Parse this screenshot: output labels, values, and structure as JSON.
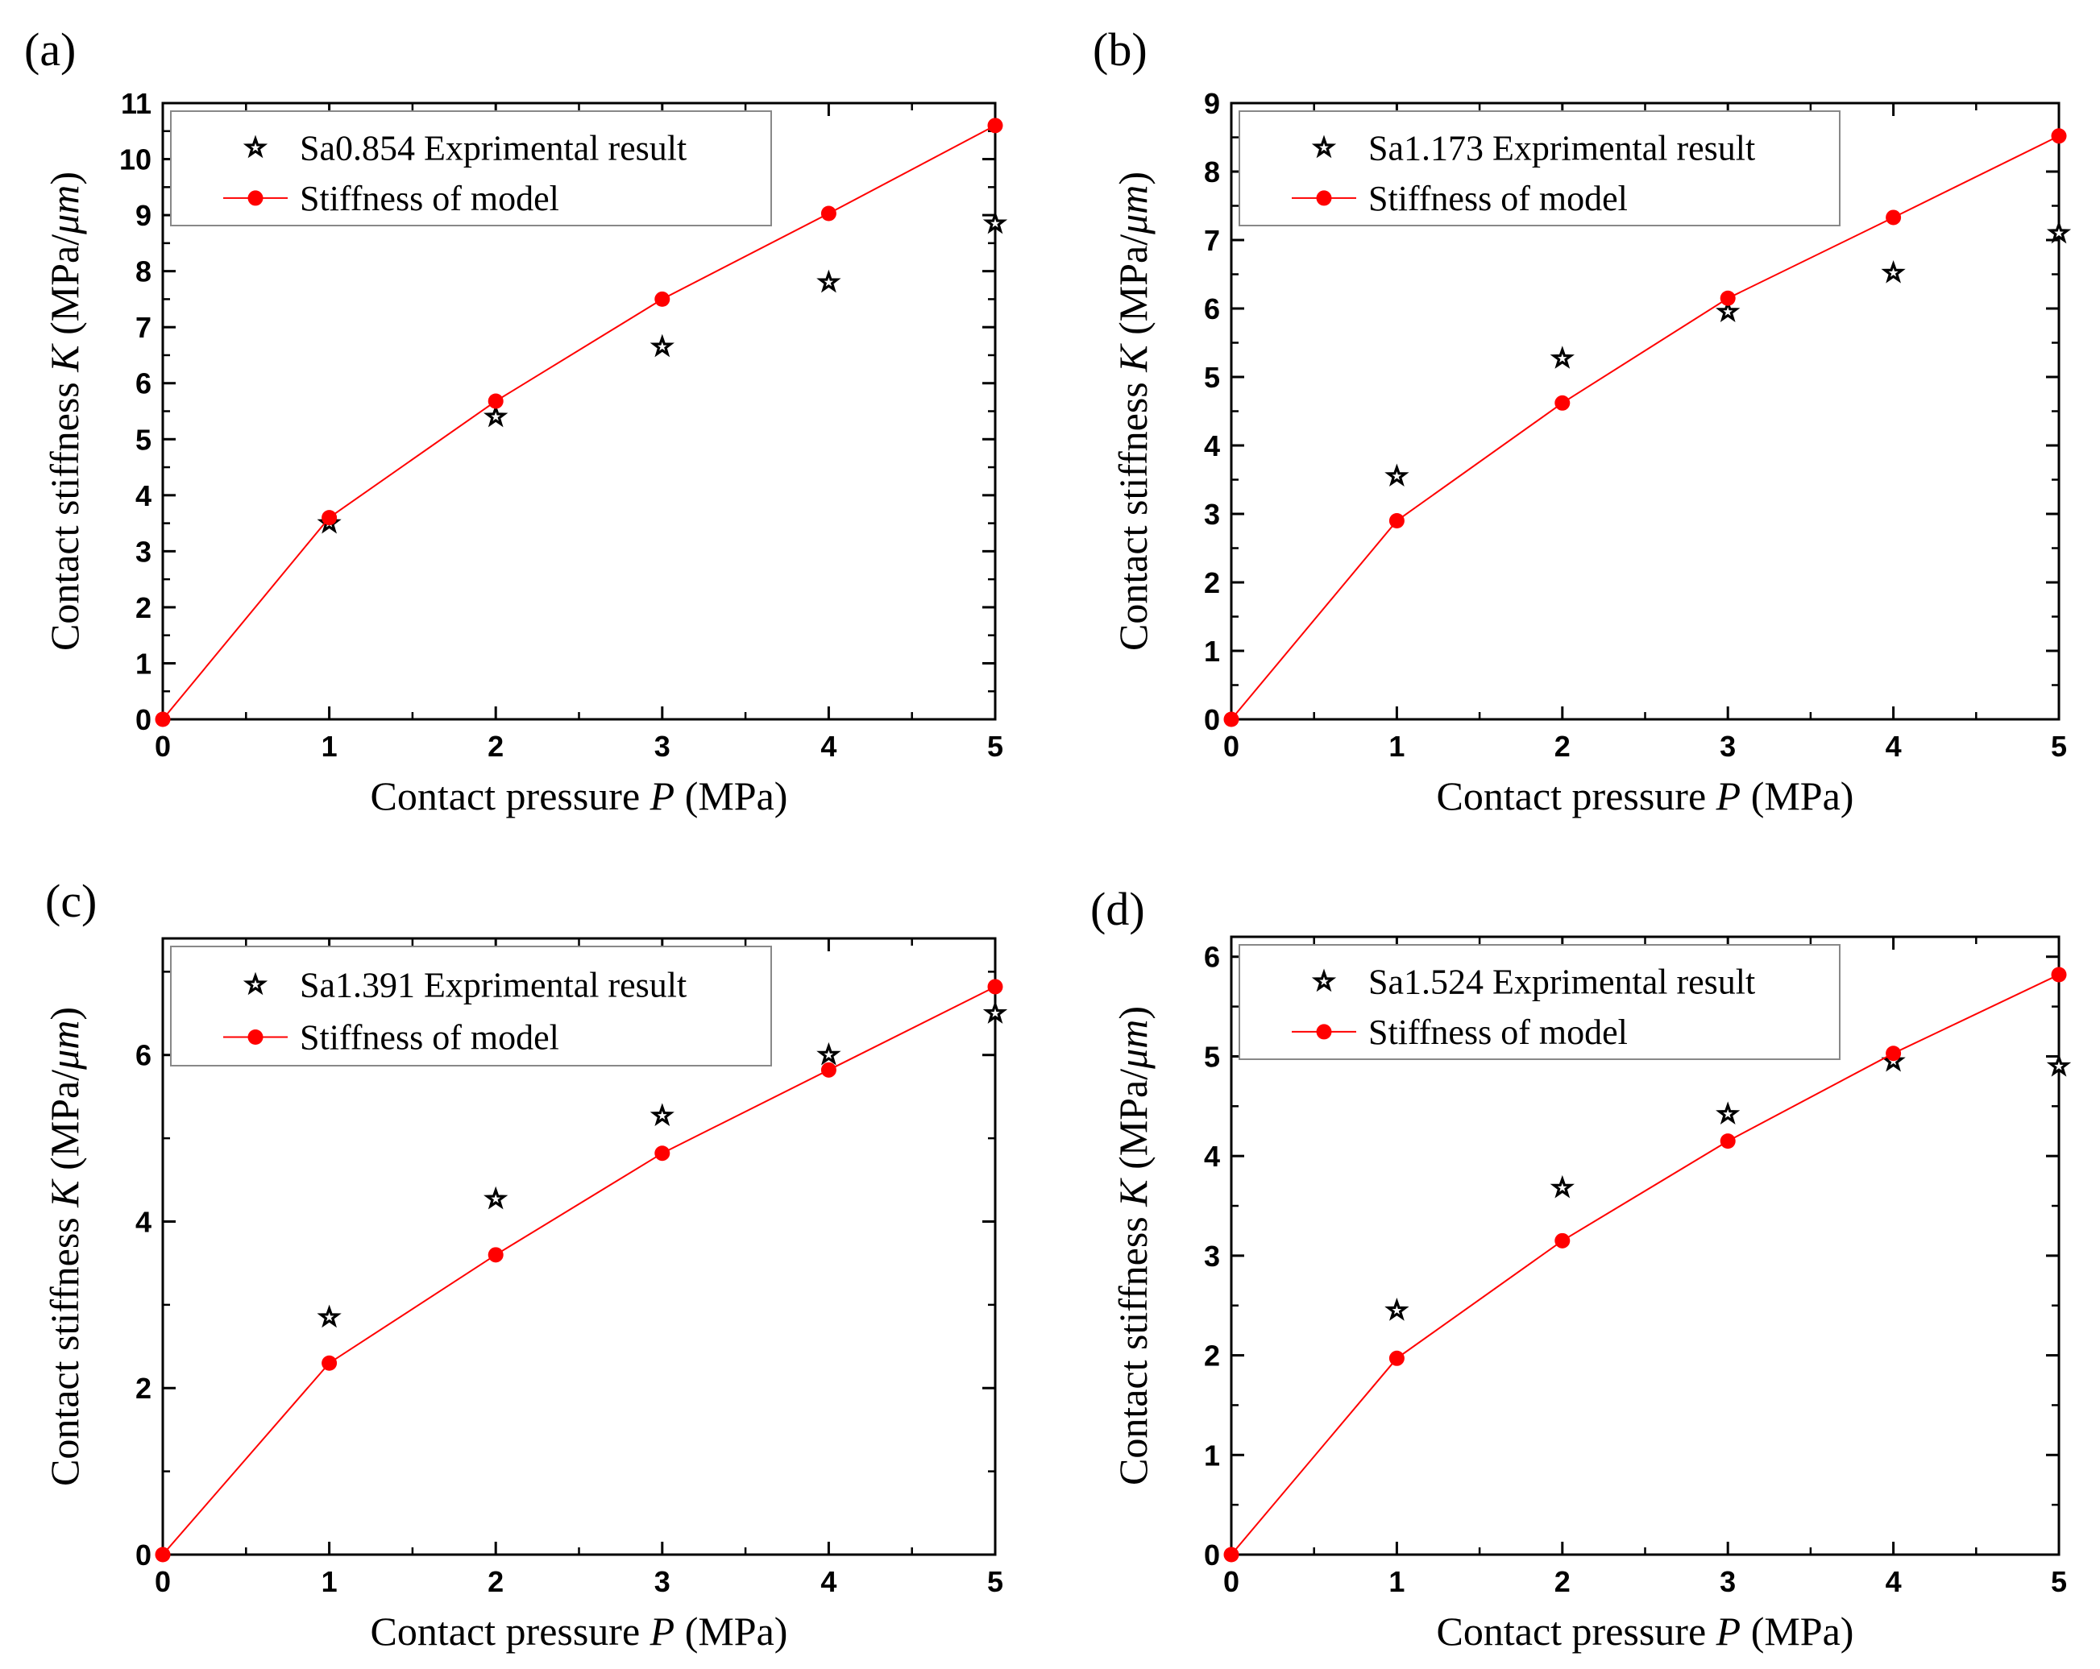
{
  "chart_data": [
    {
      "panel_label": "(a)",
      "type": "scatter",
      "xlabel_pre": "Contact pressure ",
      "xlabel_var": "P",
      "xlabel_post": " (MPa)",
      "ylabel_pre": "Contact stiffness ",
      "ylabel_var": "K",
      "ylabel_post": " (MPa/",
      "ylabel_mu": "μm",
      "ylabel_end": ")",
      "xlim": [
        0,
        5
      ],
      "ylim": [
        0,
        11
      ],
      "xticks": [
        "0",
        "1",
        "2",
        "3",
        "4",
        "5"
      ],
      "yticks": [
        "0",
        "1",
        "2",
        "3",
        "4",
        "5",
        "6",
        "7",
        "8",
        "9",
        "10",
        "11"
      ],
      "series": [
        {
          "name": "Sa0.854 Exprimental result",
          "marker": "star",
          "color": "#000000",
          "x": [
            1,
            2,
            3,
            4,
            5
          ],
          "y": [
            3.5,
            5.4,
            6.65,
            7.8,
            8.85
          ]
        },
        {
          "name": "Stiffness of model",
          "marker": "circle",
          "line": true,
          "color": "#ff0000",
          "x": [
            0,
            1,
            2,
            3,
            4,
            5
          ],
          "y": [
            0,
            3.6,
            5.68,
            7.5,
            9.03,
            10.6
          ]
        }
      ]
    },
    {
      "panel_label": "(b)",
      "type": "scatter",
      "xlabel_pre": "Contact pressure ",
      "xlabel_var": "P",
      "xlabel_post": " (MPa)",
      "ylabel_pre": "Contact stiffness ",
      "ylabel_var": "K",
      "ylabel_post": " (MPa/",
      "ylabel_mu": "μm",
      "ylabel_end": ")",
      "xlim": [
        0,
        5
      ],
      "ylim": [
        0,
        9
      ],
      "xticks": [
        "0",
        "1",
        "2",
        "3",
        "4",
        "5"
      ],
      "yticks": [
        "0",
        "1",
        "2",
        "3",
        "4",
        "5",
        "6",
        "7",
        "8",
        "9"
      ],
      "series": [
        {
          "name": "Sa1.173 Exprimental result",
          "marker": "star",
          "color": "#000000",
          "x": [
            1,
            2,
            3,
            4,
            5
          ],
          "y": [
            3.55,
            5.27,
            5.95,
            6.52,
            7.1
          ]
        },
        {
          "name": "Stiffness of model",
          "marker": "circle",
          "line": true,
          "color": "#ff0000",
          "x": [
            0,
            1,
            2,
            3,
            4,
            5
          ],
          "y": [
            0,
            2.9,
            4.62,
            6.15,
            7.33,
            8.52
          ]
        }
      ]
    },
    {
      "panel_label": "(c)",
      "type": "scatter",
      "xlabel_pre": "Contact pressure ",
      "xlabel_var": "P",
      "xlabel_post": " (MPa)",
      "ylabel_pre": "Contact stiffness ",
      "ylabel_var": "K",
      "ylabel_post": " (MPa/",
      "ylabel_mu": "μm",
      "ylabel_end": ")",
      "xlim": [
        0,
        5
      ],
      "ylim": [
        0,
        7.4
      ],
      "xticks": [
        "0",
        "1",
        "2",
        "3",
        "4",
        "5"
      ],
      "yticks": [
        "0",
        "2",
        "4",
        "6"
      ],
      "ytick_values": [
        0,
        2,
        4,
        6
      ],
      "series": [
        {
          "name": "Sa1.391 Exprimental result",
          "marker": "star",
          "color": "#000000",
          "x": [
            1,
            2,
            3,
            4,
            5
          ],
          "y": [
            2.85,
            4.27,
            5.27,
            6.0,
            6.5
          ]
        },
        {
          "name": "Stiffness of model",
          "marker": "circle",
          "line": true,
          "color": "#ff0000",
          "x": [
            0,
            1,
            2,
            3,
            4,
            5
          ],
          "y": [
            0,
            2.3,
            3.6,
            4.82,
            5.82,
            6.82
          ]
        }
      ]
    },
    {
      "panel_label": "(d)",
      "type": "scatter",
      "xlabel_pre": "Contact pressure ",
      "xlabel_var": "P",
      "xlabel_post": " (MPa)",
      "ylabel_pre": "Contact stiffness ",
      "ylabel_var": "K",
      "ylabel_post": " (MPa/",
      "ylabel_mu": "μm",
      "ylabel_end": ")",
      "xlim": [
        0,
        5
      ],
      "ylim": [
        0,
        6.2
      ],
      "xticks": [
        "0",
        "1",
        "2",
        "3",
        "4",
        "5"
      ],
      "yticks": [
        "0",
        "1",
        "2",
        "3",
        "4",
        "5",
        "6"
      ],
      "series": [
        {
          "name": "Sa1.524 Exprimental result",
          "marker": "star",
          "color": "#000000",
          "x": [
            1,
            2,
            3,
            4,
            5
          ],
          "y": [
            2.45,
            3.68,
            4.42,
            4.95,
            4.9
          ]
        },
        {
          "name": "Stiffness of model",
          "marker": "circle",
          "line": true,
          "color": "#ff0000",
          "x": [
            0,
            1,
            2,
            3,
            4,
            5
          ],
          "y": [
            0,
            1.97,
            3.15,
            4.15,
            5.03,
            5.82
          ]
        }
      ]
    }
  ]
}
